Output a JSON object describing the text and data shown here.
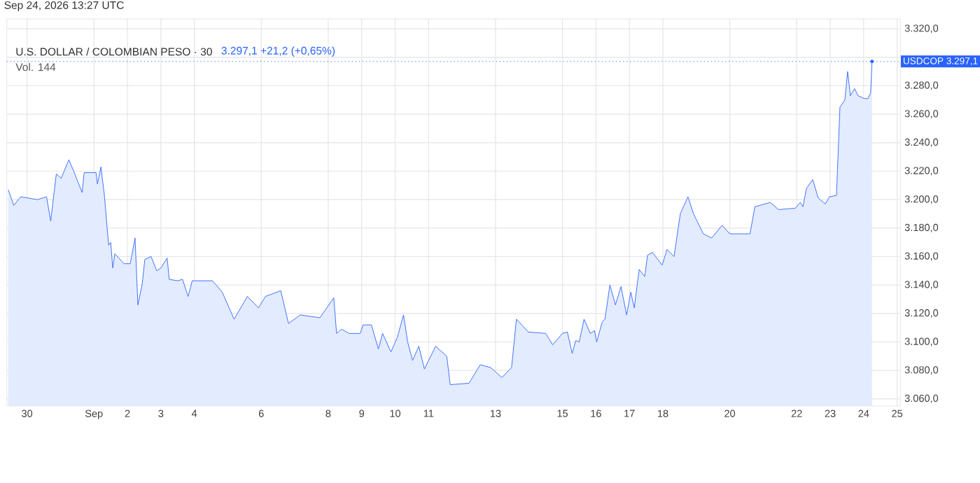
{
  "chart_data": {
    "type": "area",
    "title": "U.S. DOLLAR / COLOMBIAN PESO · 30",
    "subtitle": "Vol. 144",
    "annotations": [
      "Sep 24, 2026 13:27 UTC",
      "3.297,1  +21,2 (+0,65%)",
      "USDCOP 3.297,1"
    ],
    "x": [
      "2026-08-29T10:30",
      "2026-08-29T14:30",
      "2026-08-29T19:30",
      "2026-08-30T07:30",
      "2026-08-30T14:00",
      "2026-08-30T17:00",
      "2026-08-30T21:00",
      "2026-08-31T00:30",
      "2026-08-31T06:00",
      "2026-08-31T09:30",
      "2026-08-31T15:30",
      "2026-08-31T17:00",
      "2026-09-01T01:30",
      "2026-09-01T02:30",
      "2026-09-01T05:00",
      "2026-09-01T07:30",
      "2026-09-01T10:30",
      "2026-09-01T12:00",
      "2026-09-01T13:30",
      "2026-09-01T15:00",
      "2026-09-01T21:30",
      "2026-09-02T02:00",
      "2026-09-02T05:30",
      "2026-09-02T07:30",
      "2026-09-02T10:30",
      "2026-09-02T12:30",
      "2026-09-02T17:00",
      "2026-09-02T21:00",
      "2026-09-03T00:00",
      "2026-09-03T04:30",
      "2026-09-03T06:00",
      "2026-09-03T12:00",
      "2026-09-03T15:30",
      "2026-09-03T19:30",
      "2026-09-03T22:30",
      "2026-09-04T13:00",
      "2026-09-04T20:00",
      "2026-09-05T04:30",
      "2026-09-05T14:00",
      "2026-09-05T22:00",
      "2026-09-06T03:00",
      "2026-09-06T14:00",
      "2026-09-06T19:30",
      "2026-09-07T04:00",
      "2026-09-07T18:00",
      "2026-09-08T04:00",
      "2026-09-08T06:00",
      "2026-09-08T09:30",
      "2026-09-08T15:00",
      "2026-09-08T23:00",
      "2026-09-09T01:00",
      "2026-09-09T07:00",
      "2026-09-09T12:00",
      "2026-09-09T15:00",
      "2026-09-09T21:00",
      "2026-09-10T01:30",
      "2026-09-10T06:00",
      "2026-09-10T09:00",
      "2026-09-10T12:30",
      "2026-09-10T17:00",
      "2026-09-10T21:00",
      "2026-09-11T05:00",
      "2026-09-11T13:00",
      "2026-09-11T15:30",
      "2026-09-12T05:00",
      "2026-09-12T13:00",
      "2026-09-12T20:30",
      "2026-09-13T04:30",
      "2026-09-13T11:30",
      "2026-09-13T15:00",
      "2026-09-13T23:30",
      "2026-09-14T12:00",
      "2026-09-14T17:00",
      "2026-09-15T00:00",
      "2026-09-15T03:30",
      "2026-09-15T07:00",
      "2026-09-15T09:30",
      "2026-09-15T12:00",
      "2026-09-15T15:30",
      "2026-09-15T20:00",
      "2026-09-15T23:00",
      "2026-09-16T00:30",
      "2026-09-16T04:30",
      "2026-09-16T06:30",
      "2026-09-16T10:00",
      "2026-09-16T14:00",
      "2026-09-16T18:00",
      "2026-09-16T22:00",
      "2026-09-17T01:00",
      "2026-09-17T03:30",
      "2026-09-17T07:00",
      "2026-09-17T11:00",
      "2026-09-17T13:00",
      "2026-09-17T16:30",
      "2026-09-17T23:30",
      "2026-09-18T03:00",
      "2026-09-18T08:00",
      "2026-09-18T12:30",
      "2026-09-18T18:00",
      "2026-09-18T22:00",
      "2026-09-19T05:00",
      "2026-09-19T11:00",
      "2026-09-19T18:30",
      "2026-09-20T00:00",
      "2026-09-20T14:30",
      "2026-09-20T18:00",
      "2026-09-21T05:00",
      "2026-09-21T11:00",
      "2026-09-21T23:00",
      "2026-09-22T02:30",
      "2026-09-22T04:30",
      "2026-09-22T07:00",
      "2026-09-22T11:30",
      "2026-09-22T15:30",
      "2026-09-22T20:30",
      "2026-09-22T23:30",
      "2026-09-23T04:30",
      "2026-09-23T06:00",
      "2026-09-23T07:00",
      "2026-09-23T10:30",
      "2026-09-23T12:30",
      "2026-09-23T14:30",
      "2026-09-23T17:30",
      "2026-09-23T20:00",
      "2026-09-24T00:30",
      "2026-09-24T03:00",
      "2026-09-24T05:00",
      "2026-09-24T06:00"
    ],
    "series": [
      {
        "color": "#2962ff",
        "values": [
          3207,
          3196,
          3202,
          3200,
          3202,
          3185,
          3218,
          3215,
          3228,
          3220,
          3205,
          3219,
          3219,
          3211,
          3223,
          3203,
          3168,
          3170,
          3152,
          3162,
          3155,
          3155,
          3173,
          3126,
          3140,
          3158,
          3160,
          3150,
          3152,
          3159,
          3144,
          3143,
          3144,
          3132,
          3143,
          3143,
          3135,
          3116,
          3132,
          3124,
          3132,
          3136,
          3113,
          3119,
          3117,
          3131,
          3106,
          3109,
          3106,
          3106,
          3112,
          3112,
          3095,
          3106,
          3093,
          3103,
          3119,
          3100,
          3087,
          3097,
          3081,
          3097,
          3090,
          3070,
          3071,
          3084,
          3082,
          3075,
          3082,
          3116,
          3107,
          3106,
          3098,
          3106,
          3107,
          3092,
          3101,
          3100,
          3116,
          3106,
          3108,
          3100,
          3114,
          3116,
          3140,
          3126,
          3139,
          3119,
          3135,
          3124,
          3151,
          3146,
          3161,
          3163,
          3154,
          3165,
          3160,
          3190,
          3202,
          3190,
          3176,
          3173,
          3182,
          3176,
          3176,
          3195,
          3198,
          3193,
          3194,
          3198,
          3195,
          3208,
          3214,
          3201,
          3197,
          3202,
          3203,
          3240,
          3265,
          3270,
          3290,
          3273,
          3278,
          3273,
          3271,
          3271,
          3275,
          3297.1
        ]
      }
    ],
    "xlim": [
      "2026-08-29T09:30",
      "2026-09-25T02:30"
    ],
    "ylim": [
      3055,
      3327
    ],
    "xticks": [
      {
        "value": "2026-08-30",
        "label": "30"
      },
      {
        "value": "2026-09-01",
        "label": "Sep"
      },
      {
        "value": "2026-09-02",
        "label": "2"
      },
      {
        "value": "2026-09-03",
        "label": "3"
      },
      {
        "value": "2026-09-04",
        "label": "4"
      },
      {
        "value": "2026-09-06",
        "label": "6"
      },
      {
        "value": "2026-09-08",
        "label": "8"
      },
      {
        "value": "2026-09-09",
        "label": "9"
      },
      {
        "value": "2026-09-10",
        "label": "10"
      },
      {
        "value": "2026-09-11",
        "label": "11"
      },
      {
        "value": "2026-09-13",
        "label": "13"
      },
      {
        "value": "2026-09-15",
        "label": "15"
      },
      {
        "value": "2026-09-16",
        "label": "16"
      },
      {
        "value": "2026-09-17",
        "label": "17"
      },
      {
        "value": "2026-09-18",
        "label": "18"
      },
      {
        "value": "2026-09-20",
        "label": "20"
      },
      {
        "value": "2026-09-22",
        "label": "22"
      },
      {
        "value": "2026-09-23",
        "label": "23"
      },
      {
        "value": "2026-09-24",
        "label": "24"
      },
      {
        "value": "2026-09-25",
        "label": "25"
      }
    ],
    "yticks": [
      {
        "value": 3060,
        "label": "3.060,0"
      },
      {
        "value": 3080,
        "label": "3.080,0"
      },
      {
        "value": 3100,
        "label": "3.100,0"
      },
      {
        "value": 3120,
        "label": "3.120,0"
      },
      {
        "value": 3140,
        "label": "3.140,0"
      },
      {
        "value": 3160,
        "label": "3.160,0"
      },
      {
        "value": 3180,
        "label": "3.180,0"
      },
      {
        "value": 3200,
        "label": "3.200,0"
      },
      {
        "value": 3220,
        "label": "3.220,0"
      },
      {
        "value": 3240,
        "label": "3.240,0"
      },
      {
        "value": 3260,
        "label": "3.260,0"
      },
      {
        "value": 3280,
        "label": "3.280,0"
      },
      {
        "value": 3300,
        "label": null
      },
      {
        "value": 3320,
        "label": "3.320,0"
      }
    ],
    "ref_lines": [
      {
        "axis": "y",
        "value": 3297.1,
        "color": "#2962ff",
        "line_style": "dotted"
      }
    ],
    "grid": true
  }
}
